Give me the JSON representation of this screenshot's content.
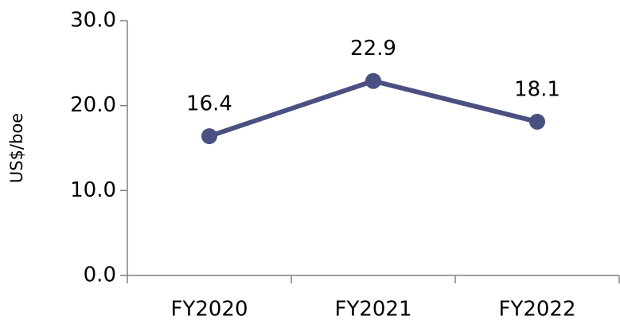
{
  "chart_data": {
    "type": "line",
    "y_label": "US$/boe",
    "categories": [
      "FY2020",
      "FY2021",
      "FY2022"
    ],
    "values": [
      16.4,
      22.9,
      18.1
    ],
    "color": "#4b5082",
    "ylim": [
      0,
      30
    ],
    "yticks": [
      {
        "value": 0,
        "label": "0.0"
      },
      {
        "value": 10,
        "label": "10.0"
      },
      {
        "value": 20,
        "label": "20.0"
      },
      {
        "value": 30,
        "label": "30.0"
      }
    ],
    "grid": false
  }
}
